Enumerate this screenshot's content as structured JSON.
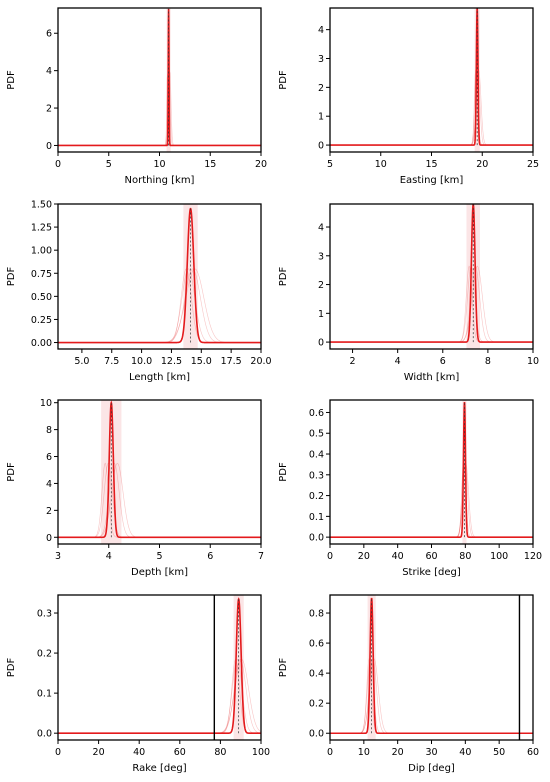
{
  "chart_data": [
    {
      "type": "line",
      "xlabel": "Northing [km]",
      "ylabel": "PDF",
      "xlim": [
        0,
        20
      ],
      "ylim": [
        -0.35,
        7.35
      ],
      "xticks": [
        0,
        5,
        10,
        15,
        20
      ],
      "xticklabels": [
        "0",
        "5",
        "10",
        "15",
        "20"
      ],
      "yticks": [
        0,
        2,
        4,
        6
      ],
      "yticklabels": [
        "0",
        "2",
        "4",
        "6"
      ],
      "peak_x": 10.9,
      "peak_y": 7.3,
      "peak_width": 0.04,
      "band_width": 0.2,
      "vlines": []
    },
    {
      "type": "line",
      "xlabel": "Easting [km]",
      "ylabel": "PDF",
      "xlim": [
        5,
        25
      ],
      "ylim": [
        -0.24,
        4.75
      ],
      "xticks": [
        5,
        10,
        15,
        20,
        25
      ],
      "xticklabels": [
        "5",
        "10",
        "15",
        "20",
        "25"
      ],
      "yticks": [
        0,
        1,
        2,
        3,
        4
      ],
      "yticklabels": [
        "0",
        "1",
        "2",
        "3",
        "4"
      ],
      "peak_x": 19.5,
      "peak_y": 4.75,
      "peak_width": 0.08,
      "band_width": 0.25,
      "vlines": []
    },
    {
      "type": "line",
      "xlabel": "Length [km]",
      "ylabel": "PDF",
      "xlim": [
        3,
        20
      ],
      "ylim": [
        -0.07,
        1.5
      ],
      "xticks": [
        5,
        7.5,
        10,
        12.5,
        15,
        17.5,
        20
      ],
      "xticklabels": [
        "5.0",
        "7.5",
        "10.0",
        "12.5",
        "15.0",
        "17.5",
        "20.0"
      ],
      "yticks": [
        0,
        0.25,
        0.5,
        0.75,
        1.0,
        1.25,
        1.5
      ],
      "yticklabels": [
        "0.00",
        "0.25",
        "0.50",
        "0.75",
        "1.00",
        "1.25",
        "1.50"
      ],
      "peak_x": 14.1,
      "peak_y": 1.45,
      "peak_width": 0.27,
      "band_width": 0.6,
      "vlines": []
    },
    {
      "type": "line",
      "xlabel": "Width [km]",
      "ylabel": "PDF",
      "xlim": [
        1,
        10
      ],
      "ylim": [
        -0.24,
        4.8
      ],
      "xticks": [
        2,
        4,
        6,
        8,
        10
      ],
      "xticklabels": [
        "2",
        "4",
        "6",
        "8",
        "10"
      ],
      "yticks": [
        0,
        1,
        2,
        3,
        4
      ],
      "yticklabels": [
        "0",
        "1",
        "2",
        "3",
        "4"
      ],
      "peak_x": 7.35,
      "peak_y": 4.8,
      "peak_width": 0.08,
      "band_width": 0.3,
      "vlines": []
    },
    {
      "type": "line",
      "xlabel": "Depth [km]",
      "ylabel": "PDF",
      "xlim": [
        3,
        7
      ],
      "ylim": [
        -0.5,
        10.2
      ],
      "xticks": [
        3,
        4,
        5,
        6,
        7
      ],
      "xticklabels": [
        "3",
        "4",
        "5",
        "6",
        "7"
      ],
      "yticks": [
        0,
        2,
        4,
        6,
        8,
        10
      ],
      "yticklabels": [
        "0",
        "2",
        "4",
        "6",
        "8",
        "10"
      ],
      "peak_x": 4.05,
      "peak_y": 10.0,
      "peak_width": 0.04,
      "band_width": 0.2,
      "vlines": []
    },
    {
      "type": "line",
      "xlabel": "Strike [deg]",
      "ylabel": "PDF",
      "xlim": [
        0,
        120
      ],
      "ylim": [
        -0.033,
        0.66
      ],
      "xticks": [
        0,
        20,
        40,
        60,
        80,
        100,
        120
      ],
      "xticklabels": [
        "0",
        "20",
        "40",
        "60",
        "80",
        "100",
        "120"
      ],
      "yticks": [
        0,
        0.1,
        0.2,
        0.3,
        0.4,
        0.5,
        0.6
      ],
      "yticklabels": [
        "0.0",
        "0.1",
        "0.2",
        "0.3",
        "0.4",
        "0.5",
        "0.6"
      ],
      "peak_x": 79.5,
      "peak_y": 0.65,
      "peak_width": 0.6,
      "band_width": 1.2,
      "vlines": []
    },
    {
      "type": "line",
      "xlabel": "Rake [deg]",
      "ylabel": "PDF",
      "xlim": [
        0,
        100
      ],
      "ylim": [
        -0.017,
        0.345
      ],
      "xticks": [
        0,
        20,
        40,
        60,
        80,
        100
      ],
      "xticklabels": [
        "0",
        "20",
        "40",
        "60",
        "80",
        "100"
      ],
      "yticks": [
        0,
        0.1,
        0.2,
        0.3
      ],
      "yticklabels": [
        "0.0",
        "0.1",
        "0.2",
        "0.3"
      ],
      "peak_x": 89,
      "peak_y": 0.335,
      "peak_width": 1.2,
      "band_width": 2.5,
      "vlines": [
        77
      ]
    },
    {
      "type": "line",
      "xlabel": "Dip [deg]",
      "ylabel": "PDF",
      "xlim": [
        0,
        60
      ],
      "ylim": [
        -0.045,
        0.92
      ],
      "xticks": [
        0,
        10,
        20,
        30,
        40,
        50,
        60
      ],
      "xticklabels": [
        "0",
        "10",
        "20",
        "30",
        "40",
        "50",
        "60"
      ],
      "yticks": [
        0,
        0.2,
        0.4,
        0.6,
        0.8
      ],
      "yticklabels": [
        "0.0",
        "0.2",
        "0.4",
        "0.6",
        "0.8"
      ],
      "peak_x": 12.3,
      "peak_y": 0.9,
      "peak_width": 0.45,
      "band_width": 1.2,
      "vlines": [
        56
      ]
    }
  ],
  "colors": {
    "curve": "#e41a1c",
    "band": "#f7c6c7",
    "axes": "#000000"
  }
}
